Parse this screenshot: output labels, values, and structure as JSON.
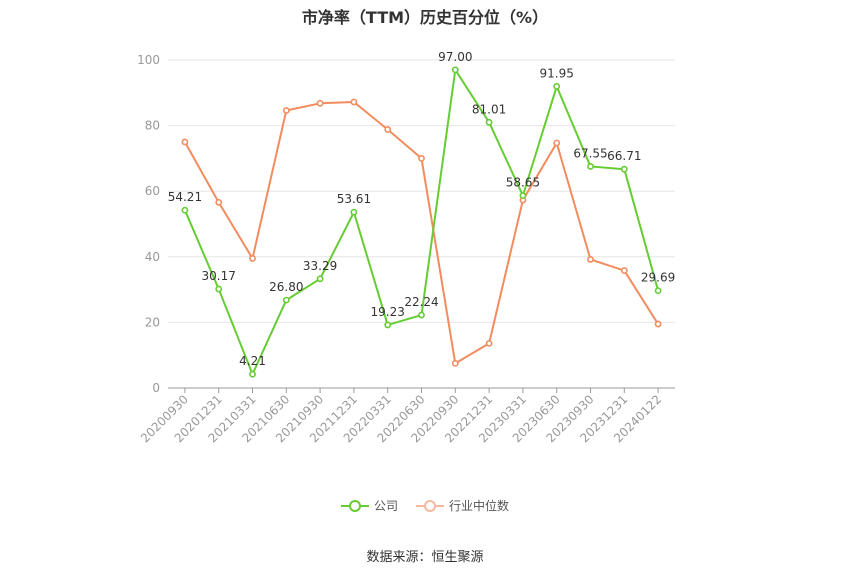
{
  "chart_data": {
    "type": "line",
    "title": "市净率（TTM）历史百分位（%）",
    "categories": [
      "20200930",
      "20201231",
      "20210331",
      "20210630",
      "20210930",
      "20211231",
      "20220331",
      "20220630",
      "20220930",
      "20221231",
      "20230331",
      "20230630",
      "20230930",
      "20231231",
      "20240122"
    ],
    "ylim": [
      0,
      100
    ],
    "yticks": [
      0,
      20,
      40,
      60,
      80,
      100
    ],
    "grid": true,
    "legend_position": "bottom",
    "series": [
      {
        "name": "公司",
        "color": "#66cc33",
        "values": [
          54.21,
          30.17,
          4.21,
          26.8,
          33.29,
          53.61,
          19.23,
          22.24,
          97.0,
          81.01,
          58.65,
          91.95,
          67.55,
          66.71,
          29.69
        ],
        "labels": [
          "54.21",
          "30.17",
          "4.21",
          "26.80",
          "33.29",
          "53.61",
          "19.23",
          "22.24",
          "97.00",
          "81.01",
          "58.65",
          "91.95",
          "67.55",
          "66.71",
          "29.69"
        ]
      },
      {
        "name": "行业中位数",
        "color": "#f28c5f",
        "values": [
          75.0,
          56.6,
          39.5,
          84.6,
          86.8,
          87.2,
          78.8,
          70.0,
          7.5,
          13.6,
          57.3,
          74.7,
          39.2,
          35.8,
          19.5
        ]
      }
    ]
  },
  "legend": {
    "company": "公司",
    "industry": "行业中位数"
  },
  "source": "数据来源：恒生聚源"
}
